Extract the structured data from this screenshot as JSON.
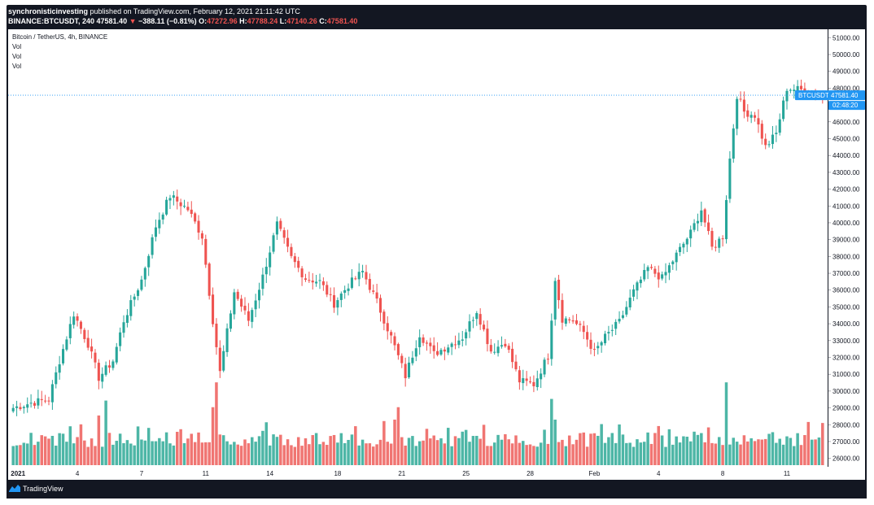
{
  "header": {
    "author": "synchronisticinvesting",
    "published_text": "published on TradingView.com, February 12, 2021 21:11:42 UTC",
    "symbol_line": "BINANCE:BTCUSDT, 240",
    "last_price": "47581.40",
    "arrow": "▼",
    "change": "−388.11 (−0.81%)",
    "o_label": "O:",
    "open": "47272.96",
    "h_label": "H:",
    "high": "47788.24",
    "l_label": "L:",
    "low": "47140.26",
    "c_label": "C:",
    "close": "47581.40"
  },
  "legend": {
    "title": "Bitcoin / TetherUS, 4h, BINANCE",
    "vol1": "Vol",
    "vol2": "Vol",
    "vol3": "Vol"
  },
  "price_tags": {
    "symbol": "BTCUSDT",
    "price": "47581.40",
    "countdown": "02:48:20"
  },
  "footer": {
    "brand": "TradingView"
  },
  "colors": {
    "up": "#26a69a",
    "down": "#ef5350",
    "vol_up": "#4db6a6",
    "vol_down": "#f07572",
    "price_line": "#2196f3",
    "background": "#131722"
  },
  "chart_data": {
    "type": "candlestick",
    "title": "Bitcoin / TetherUS, 4h, BINANCE",
    "ylim": [
      25500,
      51500
    ],
    "y_ticks": [
      26000,
      27000,
      28000,
      29000,
      30000,
      31000,
      32000,
      33000,
      34000,
      35000,
      36000,
      37000,
      38000,
      39000,
      40000,
      41000,
      42000,
      43000,
      44000,
      45000,
      46000,
      47000,
      48000,
      49000,
      50000,
      51000
    ],
    "y_tick_labels": [
      "26000.00",
      "27000.00",
      "28000.00",
      "29000.00",
      "30000.00",
      "31000.00",
      "32000.00",
      "33000.00",
      "34000.00",
      "35000.00",
      "36000.00",
      "37000.00",
      "38000.00",
      "39000.00",
      "40000.00",
      "41000.00",
      "42000.00",
      "43000.00",
      "44000.00",
      "45000.00",
      "46000.00",
      "47000.00",
      "48000.00",
      "49000.00",
      "50000.00",
      "51000.00"
    ],
    "x_ticks": [
      {
        "bar": 0,
        "label": "2021"
      },
      {
        "bar": 18,
        "label": "4"
      },
      {
        "bar": 36,
        "label": "7"
      },
      {
        "bar": 54,
        "label": "11"
      },
      {
        "bar": 72,
        "label": "14"
      },
      {
        "bar": 91,
        "label": "18"
      },
      {
        "bar": 109,
        "label": "21"
      },
      {
        "bar": 127,
        "label": "25"
      },
      {
        "bar": 145,
        "label": "28"
      },
      {
        "bar": 163,
        "label": "Feb"
      },
      {
        "bar": 181,
        "label": "4"
      },
      {
        "bar": 199,
        "label": "8"
      },
      {
        "bar": 217,
        "label": "11"
      }
    ],
    "bars_total": 228,
    "close_anchors": [
      [
        0,
        29000
      ],
      [
        5,
        29300
      ],
      [
        10,
        29500
      ],
      [
        13,
        31800
      ],
      [
        17,
        34600
      ],
      [
        21,
        32800
      ],
      [
        24,
        30800
      ],
      [
        28,
        31800
      ],
      [
        31,
        34200
      ],
      [
        36,
        36600
      ],
      [
        40,
        39800
      ],
      [
        44,
        41600
      ],
      [
        49,
        40800
      ],
      [
        53,
        39200
      ],
      [
        56,
        34200
      ],
      [
        58,
        31100
      ],
      [
        62,
        35900
      ],
      [
        66,
        34200
      ],
      [
        70,
        36800
      ],
      [
        74,
        39900
      ],
      [
        78,
        37900
      ],
      [
        82,
        36700
      ],
      [
        86,
        36500
      ],
      [
        90,
        35200
      ],
      [
        94,
        36300
      ],
      [
        98,
        37100
      ],
      [
        102,
        35300
      ],
      [
        106,
        33200
      ],
      [
        110,
        30900
      ],
      [
        114,
        33400
      ],
      [
        118,
        32200
      ],
      [
        122,
        32700
      ],
      [
        126,
        33200
      ],
      [
        130,
        34800
      ],
      [
        134,
        32400
      ],
      [
        138,
        32900
      ],
      [
        142,
        30600
      ],
      [
        146,
        30400
      ],
      [
        150,
        32100
      ],
      [
        152,
        36700
      ],
      [
        154,
        34300
      ],
      [
        157,
        34200
      ],
      [
        160,
        33500
      ],
      [
        163,
        32300
      ],
      [
        166,
        33200
      ],
      [
        170,
        34100
      ],
      [
        174,
        35900
      ],
      [
        178,
        37300
      ],
      [
        182,
        36700
      ],
      [
        186,
        38100
      ],
      [
        190,
        39400
      ],
      [
        193,
        40800
      ],
      [
        196,
        38500
      ],
      [
        199,
        39200
      ],
      [
        201,
        43800
      ],
      [
        203,
        47600
      ],
      [
        205,
        46600
      ],
      [
        208,
        46400
      ],
      [
        211,
        44500
      ],
      [
        214,
        45300
      ],
      [
        217,
        48000
      ],
      [
        221,
        47900
      ],
      [
        227,
        47581
      ]
    ],
    "last_price": 47581.4,
    "volume_ylim": [
      0,
      110
    ]
  }
}
